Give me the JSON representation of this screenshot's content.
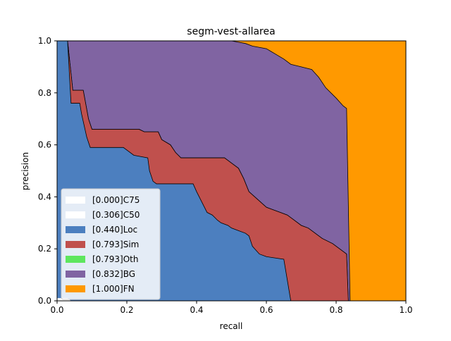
{
  "chart_data": {
    "type": "area",
    "title": "segm-vest-allarea",
    "xlabel": "recall",
    "ylabel": "precision",
    "xlim": [
      0,
      1
    ],
    "ylim": [
      0,
      1
    ],
    "xticks": [
      "0.0",
      "0.2",
      "0.4",
      "0.6",
      "0.8",
      "1.0"
    ],
    "yticks": [
      "0.0",
      "0.2",
      "0.4",
      "0.6",
      "0.8",
      "1.0"
    ],
    "grid": false,
    "legend_position": "lower-left",
    "series": [
      {
        "name": "[0.000]C75",
        "color": "#ffffff",
        "points": [
          [
            0,
            0.01
          ],
          [
            0.02,
            0.01
          ],
          [
            0.03,
            0.006
          ],
          [
            0.04,
            0
          ],
          [
            1,
            0
          ]
        ]
      },
      {
        "name": "[0.306]C50",
        "color": "#ffffff",
        "points": [
          [
            0,
            0.01
          ],
          [
            0.03,
            0.01
          ],
          [
            0.04,
            0
          ],
          [
            0.6,
            0
          ],
          [
            1,
            0
          ]
        ]
      },
      {
        "name": "[0.440]Loc",
        "color": "#4c7fbf",
        "points": [
          [
            0.03,
            1.0
          ],
          [
            0.04,
            0.76
          ],
          [
            0.065,
            0.76
          ],
          [
            0.07,
            0.72
          ],
          [
            0.085,
            0.63
          ],
          [
            0.095,
            0.59
          ],
          [
            0.19,
            0.59
          ],
          [
            0.22,
            0.56
          ],
          [
            0.26,
            0.55
          ],
          [
            0.265,
            0.5
          ],
          [
            0.275,
            0.46
          ],
          [
            0.285,
            0.45
          ],
          [
            0.39,
            0.45
          ],
          [
            0.4,
            0.42
          ],
          [
            0.415,
            0.38
          ],
          [
            0.43,
            0.34
          ],
          [
            0.445,
            0.33
          ],
          [
            0.46,
            0.31
          ],
          [
            0.47,
            0.3
          ],
          [
            0.49,
            0.29
          ],
          [
            0.5,
            0.28
          ],
          [
            0.52,
            0.27
          ],
          [
            0.54,
            0.26
          ],
          [
            0.55,
            0.25
          ],
          [
            0.56,
            0.21
          ],
          [
            0.58,
            0.18
          ],
          [
            0.6,
            0.17
          ],
          [
            0.65,
            0.16
          ],
          [
            0.66,
            0.08
          ],
          [
            0.67,
            0
          ],
          [
            1,
            0
          ]
        ]
      },
      {
        "name": "[0.793]Sim",
        "color": "#c0504d",
        "points": [
          [
            0.03,
            1.0
          ],
          [
            0.045,
            0.81
          ],
          [
            0.075,
            0.81
          ],
          [
            0.09,
            0.7
          ],
          [
            0.1,
            0.66
          ],
          [
            0.235,
            0.66
          ],
          [
            0.25,
            0.65
          ],
          [
            0.29,
            0.65
          ],
          [
            0.3,
            0.62
          ],
          [
            0.325,
            0.6
          ],
          [
            0.34,
            0.57
          ],
          [
            0.355,
            0.55
          ],
          [
            0.48,
            0.55
          ],
          [
            0.5,
            0.53
          ],
          [
            0.52,
            0.51
          ],
          [
            0.535,
            0.47
          ],
          [
            0.55,
            0.42
          ],
          [
            0.575,
            0.39
          ],
          [
            0.6,
            0.36
          ],
          [
            0.62,
            0.35
          ],
          [
            0.64,
            0.34
          ],
          [
            0.66,
            0.33
          ],
          [
            0.68,
            0.31
          ],
          [
            0.7,
            0.29
          ],
          [
            0.72,
            0.28
          ],
          [
            0.74,
            0.26
          ],
          [
            0.76,
            0.24
          ],
          [
            0.79,
            0.22
          ],
          [
            0.81,
            0.2
          ],
          [
            0.83,
            0.18
          ],
          [
            0.835,
            0.0
          ],
          [
            1,
            0
          ]
        ]
      },
      {
        "name": "[0.793]Oth",
        "color": "#5ee65e",
        "points": [
          [
            0.03,
            1.0
          ],
          [
            0.045,
            0.81
          ],
          [
            0.075,
            0.81
          ],
          [
            0.09,
            0.7
          ],
          [
            0.1,
            0.66
          ],
          [
            0.235,
            0.66
          ],
          [
            0.25,
            0.65
          ],
          [
            0.29,
            0.65
          ],
          [
            0.3,
            0.62
          ],
          [
            0.325,
            0.6
          ],
          [
            0.34,
            0.57
          ],
          [
            0.355,
            0.55
          ],
          [
            0.48,
            0.55
          ],
          [
            0.5,
            0.53
          ],
          [
            0.52,
            0.51
          ],
          [
            0.535,
            0.47
          ],
          [
            0.55,
            0.42
          ],
          [
            0.575,
            0.39
          ],
          [
            0.6,
            0.36
          ],
          [
            0.62,
            0.35
          ],
          [
            0.64,
            0.34
          ],
          [
            0.66,
            0.33
          ],
          [
            0.68,
            0.31
          ],
          [
            0.7,
            0.29
          ],
          [
            0.72,
            0.28
          ],
          [
            0.74,
            0.26
          ],
          [
            0.76,
            0.24
          ],
          [
            0.79,
            0.22
          ],
          [
            0.81,
            0.2
          ],
          [
            0.83,
            0.18
          ],
          [
            0.835,
            0.0
          ],
          [
            1,
            0
          ]
        ]
      },
      {
        "name": "[0.832]BG",
        "color": "#8064a2",
        "points": [
          [
            0.03,
            1.0
          ],
          [
            0.5,
            1.0
          ],
          [
            0.54,
            0.99
          ],
          [
            0.56,
            0.98
          ],
          [
            0.6,
            0.97
          ],
          [
            0.625,
            0.95
          ],
          [
            0.65,
            0.93
          ],
          [
            0.67,
            0.91
          ],
          [
            0.7,
            0.9
          ],
          [
            0.73,
            0.89
          ],
          [
            0.75,
            0.86
          ],
          [
            0.77,
            0.82
          ],
          [
            0.8,
            0.78
          ],
          [
            0.82,
            0.75
          ],
          [
            0.83,
            0.74
          ],
          [
            0.84,
            0.0
          ],
          [
            1,
            0
          ]
        ]
      },
      {
        "name": "[1.000]FN",
        "color": "#ff9900",
        "points": [
          [
            0.0,
            1.0
          ],
          [
            1.0,
            1.0
          ]
        ]
      }
    ]
  }
}
